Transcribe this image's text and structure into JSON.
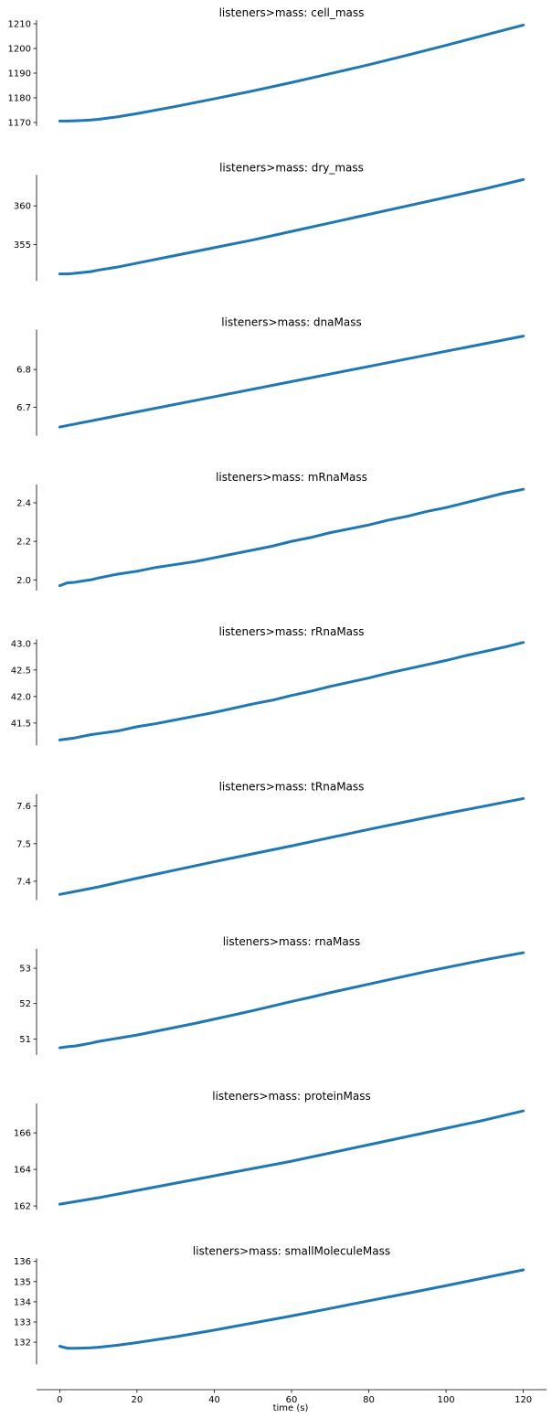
{
  "chart_data": [
    {
      "type": "line",
      "title": "listeners>mass: cell_mass",
      "xlim": [
        -6,
        126
      ],
      "ylim": [
        1168.5,
        1211.5
      ],
      "yticks": [
        1170,
        1180,
        1190,
        1200,
        1210
      ],
      "x": [
        0,
        2,
        4,
        6,
        8,
        10,
        15,
        20,
        30,
        40,
        50,
        60,
        70,
        80,
        90,
        100,
        110,
        120
      ],
      "series": [
        {
          "color": "#1f77b4",
          "values": [
            1170.6,
            1170.6,
            1170.7,
            1170.8,
            1171.0,
            1171.3,
            1172.3,
            1173.6,
            1176.5,
            1179.6,
            1182.8,
            1186.2,
            1189.8,
            1193.4,
            1197.3,
            1201.3,
            1205.4,
            1209.5
          ]
        }
      ]
    },
    {
      "type": "line",
      "title": "listeners>mass: dry_mass",
      "xlim": [
        -6,
        126
      ],
      "ylim": [
        350.3,
        364.0
      ],
      "yticks": [
        355,
        360
      ],
      "x": [
        0,
        2,
        4,
        6,
        8,
        10,
        15,
        20,
        30,
        40,
        50,
        60,
        70,
        80,
        90,
        100,
        110,
        120
      ],
      "series": [
        {
          "color": "#1f77b4",
          "values": [
            351.2,
            351.2,
            351.3,
            351.4,
            351.5,
            351.7,
            352.1,
            352.6,
            353.6,
            354.6,
            355.6,
            356.7,
            357.8,
            358.9,
            360.0,
            361.1,
            362.2,
            363.4
          ]
        }
      ]
    },
    {
      "type": "line",
      "title": "listeners>mass: dnaMass",
      "xlim": [
        -6,
        126
      ],
      "ylim": [
        6.625,
        6.905
      ],
      "yticks": [
        6.7,
        6.8
      ],
      "x": [
        0,
        20,
        40,
        60,
        80,
        100,
        120
      ],
      "series": [
        {
          "color": "#1f77b4",
          "values": [
            6.648,
            6.688,
            6.728,
            6.768,
            6.808,
            6.848,
            6.888
          ]
        }
      ]
    },
    {
      "type": "line",
      "title": "listeners>mass: mRnaMass",
      "xlim": [
        -6,
        126
      ],
      "ylim": [
        1.945,
        2.495
      ],
      "yticks": [
        2.0,
        2.2,
        2.4
      ],
      "x": [
        0,
        2,
        4,
        6,
        8,
        10,
        15,
        20,
        25,
        30,
        35,
        40,
        45,
        50,
        55,
        60,
        65,
        70,
        75,
        80,
        85,
        90,
        95,
        100,
        105,
        110,
        115,
        120
      ],
      "series": [
        {
          "color": "#1f77b4",
          "values": [
            1.97,
            1.985,
            1.988,
            1.995,
            2.0,
            2.01,
            2.03,
            2.045,
            2.065,
            2.08,
            2.095,
            2.115,
            2.135,
            2.155,
            2.175,
            2.2,
            2.22,
            2.245,
            2.265,
            2.285,
            2.31,
            2.33,
            2.355,
            2.375,
            2.4,
            2.425,
            2.45,
            2.47
          ]
        }
      ]
    },
    {
      "type": "line",
      "title": "listeners>mass: rRnaMass",
      "xlim": [
        -6,
        126
      ],
      "ylim": [
        41.08,
        43.08
      ],
      "yticks": [
        41.5,
        42.0,
        42.5,
        43.0
      ],
      "x": [
        0,
        2,
        4,
        6,
        8,
        10,
        15,
        20,
        25,
        30,
        35,
        40,
        45,
        50,
        55,
        60,
        65,
        70,
        75,
        80,
        85,
        90,
        95,
        100,
        105,
        110,
        115,
        120
      ],
      "series": [
        {
          "color": "#1f77b4",
          "values": [
            41.18,
            41.2,
            41.22,
            41.25,
            41.28,
            41.3,
            41.35,
            41.43,
            41.49,
            41.56,
            41.63,
            41.7,
            41.78,
            41.86,
            41.93,
            42.02,
            42.1,
            42.19,
            42.27,
            42.35,
            42.44,
            42.52,
            42.6,
            42.68,
            42.77,
            42.85,
            42.93,
            43.02
          ]
        }
      ]
    },
    {
      "type": "line",
      "title": "listeners>mass: tRnaMass",
      "xlim": [
        -6,
        126
      ],
      "ylim": [
        7.35,
        7.632
      ],
      "yticks": [
        7.4,
        7.5,
        7.6
      ],
      "x": [
        0,
        5,
        10,
        20,
        30,
        40,
        50,
        60,
        70,
        80,
        90,
        100,
        110,
        120
      ],
      "series": [
        {
          "color": "#1f77b4",
          "values": [
            7.365,
            7.375,
            7.385,
            7.408,
            7.43,
            7.452,
            7.473,
            7.494,
            7.516,
            7.538,
            7.559,
            7.58,
            7.6,
            7.62
          ]
        }
      ]
    },
    {
      "type": "line",
      "title": "listeners>mass: rnaMass",
      "xlim": [
        -6,
        126
      ],
      "ylim": [
        50.55,
        53.55
      ],
      "yticks": [
        51,
        52,
        53
      ],
      "x": [
        0,
        2,
        4,
        6,
        8,
        10,
        15,
        20,
        25,
        30,
        35,
        40,
        45,
        50,
        55,
        60,
        65,
        70,
        75,
        80,
        85,
        90,
        95,
        100,
        105,
        110,
        115,
        120
      ],
      "series": [
        {
          "color": "#1f77b4",
          "values": [
            50.75,
            50.78,
            50.8,
            50.84,
            50.88,
            50.93,
            51.02,
            51.11,
            51.22,
            51.33,
            51.44,
            51.56,
            51.68,
            51.8,
            51.93,
            52.06,
            52.18,
            52.31,
            52.43,
            52.55,
            52.67,
            52.79,
            52.91,
            53.02,
            53.13,
            53.24,
            53.34,
            53.44
          ]
        }
      ]
    },
    {
      "type": "line",
      "title": "listeners>mass: proteinMass",
      "xlim": [
        -6,
        126
      ],
      "ylim": [
        161.8,
        167.6
      ],
      "yticks": [
        162,
        164,
        166
      ],
      "x": [
        0,
        10,
        20,
        30,
        40,
        50,
        60,
        70,
        80,
        90,
        100,
        110,
        120
      ],
      "series": [
        {
          "color": "#1f77b4",
          "values": [
            162.1,
            162.45,
            162.85,
            163.25,
            163.65,
            164.05,
            164.45,
            164.9,
            165.35,
            165.8,
            166.25,
            166.7,
            167.2
          ]
        }
      ]
    },
    {
      "type": "line",
      "title": "listeners>mass: smallMoleculeMass",
      "xlim": [
        -6,
        126
      ],
      "ylim": [
        130.9,
        136.15
      ],
      "yticks": [
        132,
        133,
        134,
        135,
        136
      ],
      "x": [
        0,
        2,
        4,
        6,
        8,
        10,
        15,
        20,
        30,
        40,
        50,
        60,
        70,
        80,
        90,
        100,
        110,
        120
      ],
      "series": [
        {
          "color": "#1f77b4",
          "values": [
            131.8,
            131.7,
            131.7,
            131.71,
            131.72,
            131.75,
            131.85,
            131.98,
            132.27,
            132.6,
            132.95,
            133.3,
            133.67,
            134.05,
            134.42,
            134.8,
            135.19,
            135.58
          ]
        }
      ]
    }
  ],
  "shared_x_axis": {
    "ticks": [
      0,
      20,
      40,
      60,
      80,
      100,
      120
    ],
    "label": "time (s)"
  }
}
